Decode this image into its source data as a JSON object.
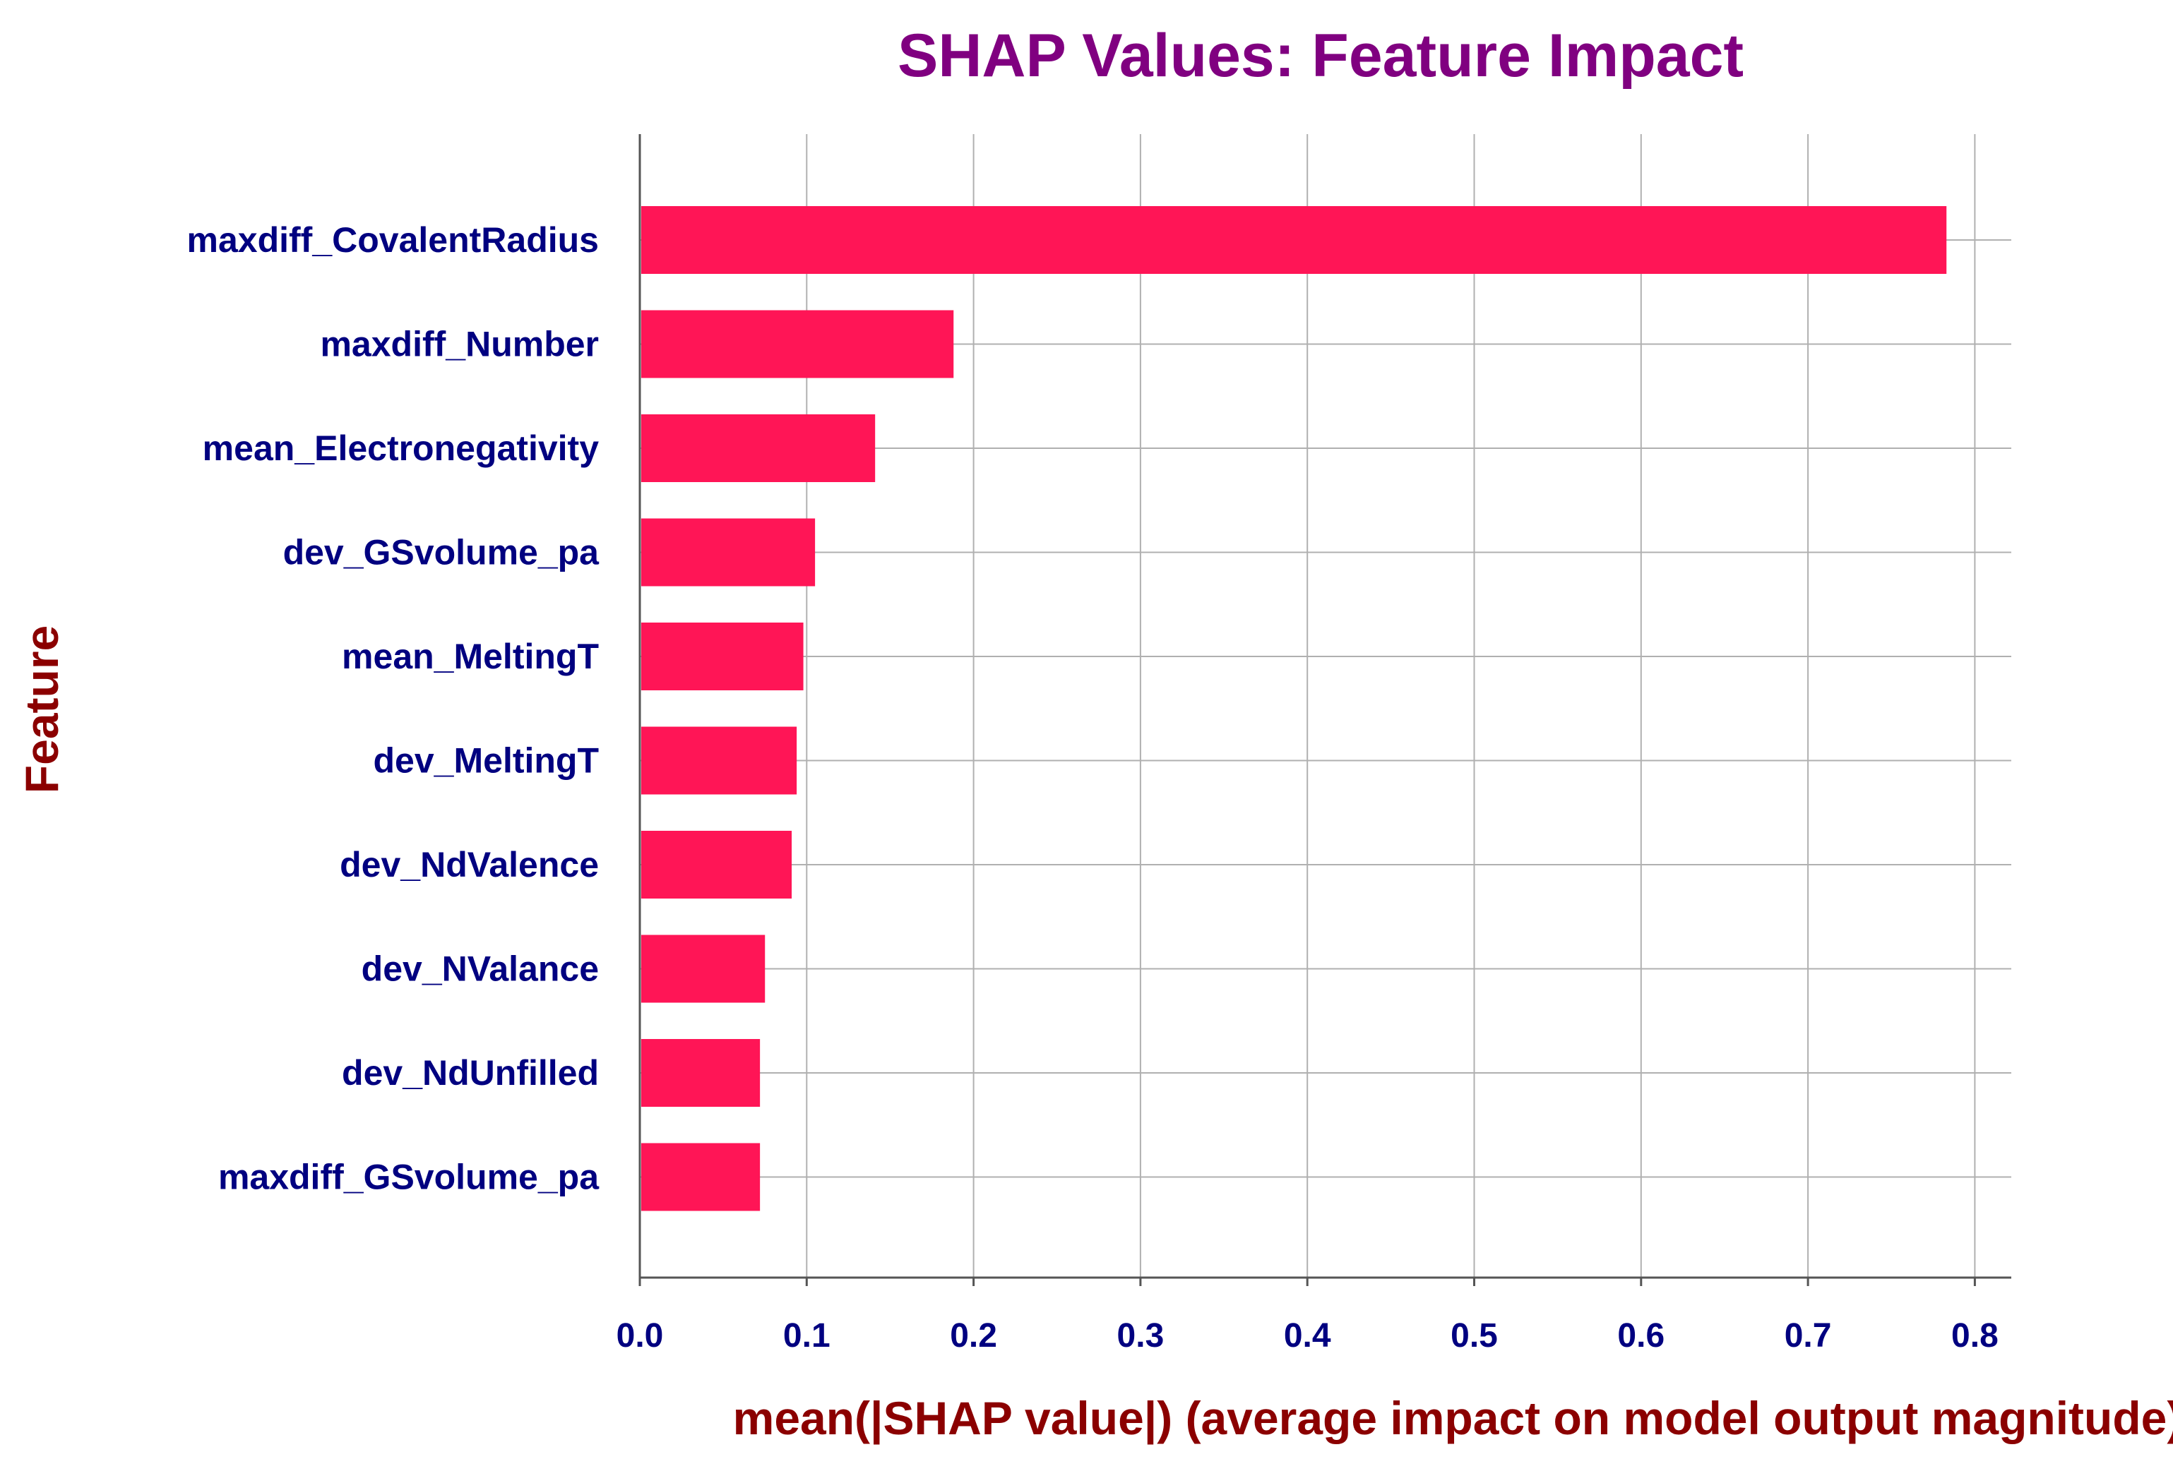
{
  "chart_data": {
    "type": "bar",
    "orientation": "horizontal",
    "title": "SHAP Values: Feature Impact",
    "xlabel": "mean(|SHAP value|) (average impact on model output magnitude)",
    "ylabel": "Feature",
    "categories": [
      "maxdiff_CovalentRadius",
      "maxdiff_Number",
      "mean_Electronegativity",
      "dev_GSvolume_pa",
      "mean_MeltingT",
      "dev_MeltingT",
      "dev_NdValence",
      "dev_NValance",
      "dev_NdUnfilled",
      "maxdiff_GSvolume_pa"
    ],
    "values": [
      0.783,
      0.188,
      0.141,
      0.105,
      0.098,
      0.094,
      0.091,
      0.075,
      0.072,
      0.072
    ],
    "xlim": [
      0,
      0.825
    ],
    "xticks": [
      0.0,
      0.1,
      0.2,
      0.3,
      0.4,
      0.5,
      0.6,
      0.7,
      0.8
    ],
    "xtick_labels": [
      "0.0",
      "0.1",
      "0.2",
      "0.3",
      "0.4",
      "0.5",
      "0.6",
      "0.7",
      "0.8"
    ],
    "grid": true,
    "colors": {
      "bar": "#ff1556",
      "title": "#800080",
      "axis_label": "#8b0000",
      "tick_label": "#000080",
      "grid": "#b0b0b0",
      "axis": "#555555"
    }
  }
}
